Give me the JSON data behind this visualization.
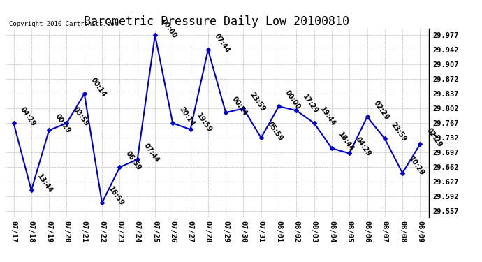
{
  "title": "Barometric Pressure Daily Low 20100810",
  "copyright": "Copyright 2010 Cartronics.com",
  "dates": [
    "07/17",
    "07/18",
    "07/19",
    "07/20",
    "07/21",
    "07/22",
    "07/23",
    "07/24",
    "07/25",
    "07/26",
    "07/27",
    "07/28",
    "07/29",
    "07/30",
    "07/31",
    "08/01",
    "08/02",
    "08/03",
    "08/04",
    "08/05",
    "08/06",
    "08/07",
    "08/08",
    "08/09"
  ],
  "values": [
    29.767,
    29.607,
    29.75,
    29.767,
    29.837,
    29.577,
    29.662,
    29.68,
    29.977,
    29.767,
    29.752,
    29.942,
    29.792,
    29.802,
    29.732,
    29.807,
    29.797,
    29.767,
    29.707,
    29.695,
    29.782,
    29.73,
    29.648,
    29.717
  ],
  "labels": [
    "04:29",
    "13:44",
    "00:29",
    "03:59",
    "00:14",
    "16:59",
    "06:59",
    "07:44",
    "00:00",
    "20:14",
    "19:59",
    "07:44",
    "00:14",
    "23:59",
    "05:59",
    "00:00",
    "17:29",
    "19:44",
    "18:44",
    "04:29",
    "02:29",
    "23:59",
    "10:29",
    "02:29"
  ],
  "line_color": "#0000cc",
  "marker_color": "#0000cc",
  "bg_color": "#ffffff",
  "grid_color": "#bbbbbb",
  "title_fontsize": 12,
  "label_fontsize": 7,
  "ytick_values": [
    29.557,
    29.592,
    29.627,
    29.662,
    29.697,
    29.732,
    29.767,
    29.802,
    29.837,
    29.872,
    29.907,
    29.942,
    29.977
  ],
  "ylim_min": 29.542,
  "ylim_max": 29.992
}
